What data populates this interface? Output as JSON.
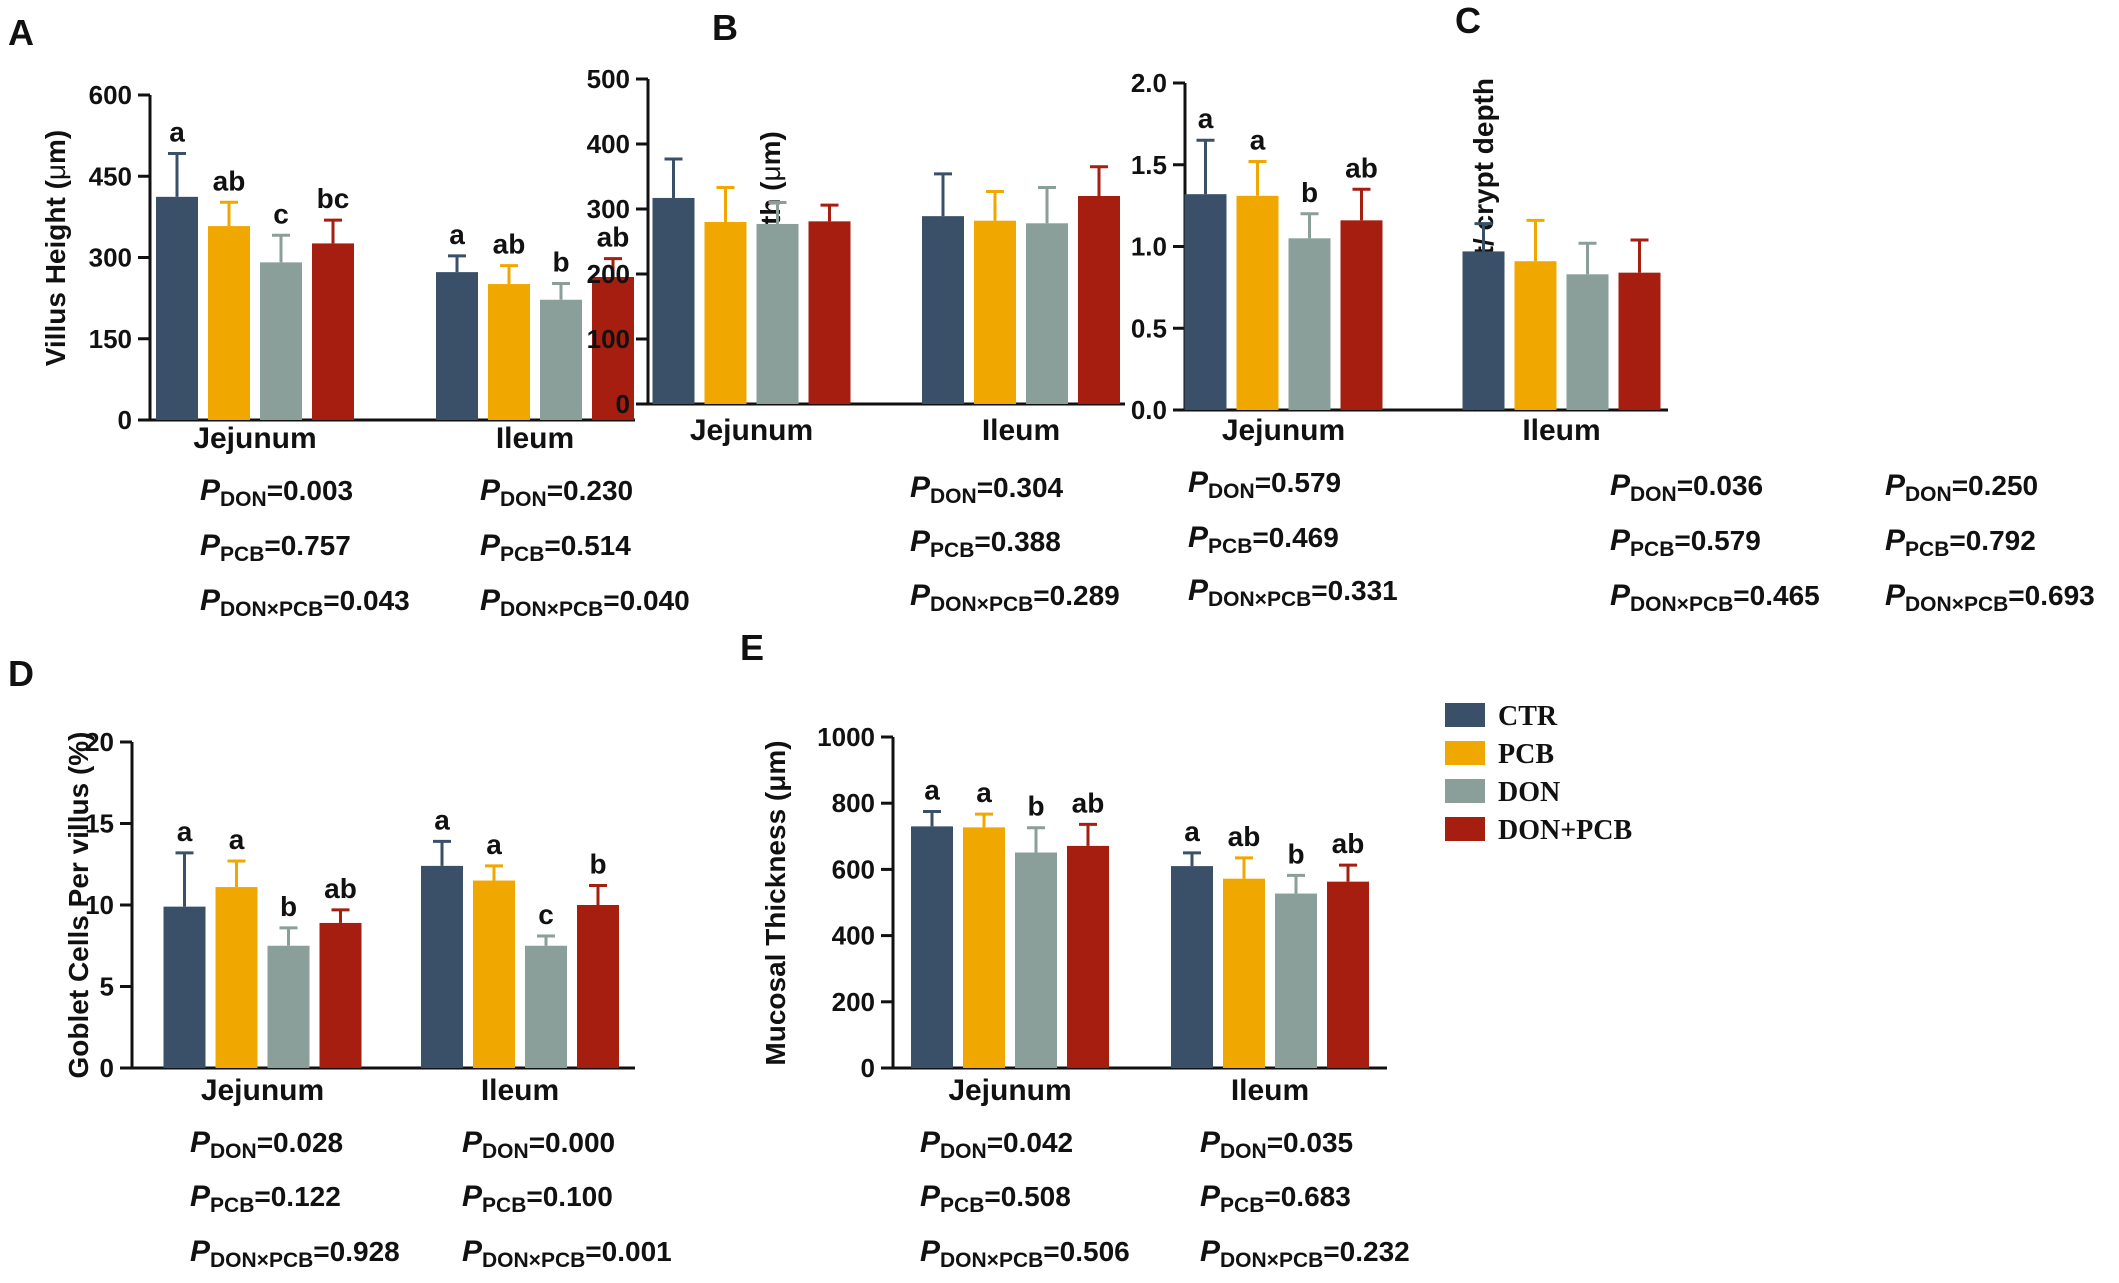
{
  "colors": {
    "CTR": "#3a5068",
    "PCB": "#f0a800",
    "DON": "#8a9e9a",
    "DON+PCB": "#a51e10",
    "axis": "#111111"
  },
  "legend": {
    "items": [
      {
        "label": "CTR",
        "color": "#3a5068"
      },
      {
        "label": "PCB",
        "color": "#f0a800"
      },
      {
        "label": "DON",
        "color": "#8a9e9a"
      },
      {
        "label": "DON+PCB",
        "color": "#a51e10"
      }
    ]
  },
  "chart_data": [
    {
      "id": "A",
      "type": "bar",
      "panel_label": "A",
      "ylabel_parts": [
        "Villus Height (",
        "μ",
        "m)"
      ],
      "ylim": [
        0,
        600
      ],
      "yticks": [
        "0",
        "150",
        "300",
        "450",
        "600"
      ],
      "ytick_values": [
        0,
        150,
        300,
        450,
        600
      ],
      "categories": [
        "Jejunum",
        "Ileum"
      ],
      "series": [
        {
          "name": "CTR",
          "values": [
            412,
            273
          ],
          "errors": [
            80,
            30
          ],
          "letters": [
            "a",
            "a"
          ]
        },
        {
          "name": "PCB",
          "values": [
            358,
            251
          ],
          "errors": [
            44,
            34
          ],
          "letters": [
            "ab",
            "ab"
          ]
        },
        {
          "name": "DON",
          "values": [
            291,
            222
          ],
          "errors": [
            50,
            30
          ],
          "letters": [
            "c",
            "b"
          ]
        },
        {
          "name": "DON+PCB",
          "values": [
            326,
            264
          ],
          "errors": [
            43,
            34
          ],
          "letters": [
            "bc",
            "ab"
          ]
        }
      ],
      "pvalues": [
        [
          {
            "label": "P",
            "sub": "DON",
            "value": "=0.003"
          },
          {
            "label": "P",
            "sub": "PCB",
            "value": "=0.757"
          },
          {
            "label": "P",
            "sub": "DON×PCB",
            "value": "=0.043"
          }
        ],
        [
          {
            "label": "P",
            "sub": "DON",
            "value": "=0.230"
          },
          {
            "label": "P",
            "sub": "PCB",
            "value": "=0.514"
          },
          {
            "label": "P",
            "sub": "DON×PCB",
            "value": "=0.040"
          }
        ]
      ]
    },
    {
      "id": "B",
      "type": "bar",
      "panel_label": "B",
      "ylabel_parts": [
        "Crypt Depth (",
        "μ",
        "m)"
      ],
      "ylim": [
        0,
        500
      ],
      "yticks": [
        "0",
        "100",
        "200",
        "300",
        "400",
        "500"
      ],
      "ytick_values": [
        0,
        100,
        200,
        300,
        400,
        500
      ],
      "categories": [
        "Jejunum",
        "Ileum"
      ],
      "series": [
        {
          "name": "CTR",
          "values": [
            317,
            289
          ],
          "errors": [
            60,
            65
          ],
          "letters": [
            "",
            ""
          ]
        },
        {
          "name": "PCB",
          "values": [
            280,
            282
          ],
          "errors": [
            53,
            45
          ],
          "letters": [
            "",
            ""
          ]
        },
        {
          "name": "DON",
          "values": [
            277,
            278
          ],
          "errors": [
            33,
            55
          ],
          "letters": [
            "",
            ""
          ]
        },
        {
          "name": "DON+PCB",
          "values": [
            281,
            320
          ],
          "errors": [
            25,
            45
          ],
          "letters": [
            "",
            ""
          ]
        }
      ],
      "pvalues": [
        [
          {
            "label": "P",
            "sub": "DON",
            "value": "=0.304"
          },
          {
            "label": "P",
            "sub": "PCB",
            "value": "=0.388"
          },
          {
            "label": "P",
            "sub": "DON×PCB",
            "value": "=0.289"
          }
        ],
        [
          {
            "label": "P",
            "sub": "DON",
            "value": "=0.579"
          },
          {
            "label": "P",
            "sub": "PCB",
            "value": "=0.469"
          },
          {
            "label": "P",
            "sub": "DON×PCB",
            "value": "=0.331"
          }
        ]
      ]
    },
    {
      "id": "C",
      "type": "bar",
      "panel_label": "C",
      "ylabel_parts": [
        "Villus height/ crypt depth",
        "",
        ""
      ],
      "ylim": [
        0,
        2
      ],
      "yticks": [
        "0.0",
        "0.5",
        "1.0",
        "1.5",
        "2.0"
      ],
      "ytick_values": [
        0,
        0.5,
        1,
        1.5,
        2
      ],
      "categories": [
        "Jejunum",
        "Ileum"
      ],
      "series": [
        {
          "name": "CTR",
          "values": [
            1.32,
            0.97
          ],
          "errors": [
            0.33,
            0.17
          ],
          "letters": [
            "a",
            ""
          ]
        },
        {
          "name": "PCB",
          "values": [
            1.31,
            0.91
          ],
          "errors": [
            0.21,
            0.25
          ],
          "letters": [
            "a",
            ""
          ]
        },
        {
          "name": "DON",
          "values": [
            1.05,
            0.83
          ],
          "errors": [
            0.15,
            0.19
          ],
          "letters": [
            "b",
            ""
          ]
        },
        {
          "name": "DON+PCB",
          "values": [
            1.16,
            0.84
          ],
          "errors": [
            0.19,
            0.2
          ],
          "letters": [
            "ab",
            ""
          ]
        }
      ],
      "pvalues": [
        [
          {
            "label": "P",
            "sub": "DON",
            "value": "=0.036"
          },
          {
            "label": "P",
            "sub": "PCB",
            "value": "=0.579"
          },
          {
            "label": "P",
            "sub": "DON×PCB",
            "value": "=0.465"
          }
        ],
        [
          {
            "label": "P",
            "sub": "DON",
            "value": "=0.250"
          },
          {
            "label": "P",
            "sub": "PCB",
            "value": "=0.792"
          },
          {
            "label": "P",
            "sub": "DON×PCB",
            "value": "=0.693"
          }
        ]
      ]
    },
    {
      "id": "D",
      "type": "bar",
      "panel_label": "D",
      "ylabel_parts": [
        "Goblet Cells Per villus (%)",
        "",
        ""
      ],
      "ylim": [
        0,
        20
      ],
      "yticks": [
        "0",
        "5",
        "10",
        "15",
        "20"
      ],
      "ytick_values": [
        0,
        5,
        10,
        15,
        20
      ],
      "categories": [
        "Jejunum",
        "Ileum"
      ],
      "series": [
        {
          "name": "CTR",
          "values": [
            9.9,
            12.4
          ],
          "errors": [
            3.3,
            1.5
          ],
          "letters": [
            "a",
            "a"
          ]
        },
        {
          "name": "PCB",
          "values": [
            11.1,
            11.5
          ],
          "errors": [
            1.6,
            0.9
          ],
          "letters": [
            "a",
            "a"
          ]
        },
        {
          "name": "DON",
          "values": [
            7.5,
            7.5
          ],
          "errors": [
            1.1,
            0.6
          ],
          "letters": [
            "b",
            "c"
          ]
        },
        {
          "name": "DON+PCB",
          "values": [
            8.9,
            10.0
          ],
          "errors": [
            0.8,
            1.2
          ],
          "letters": [
            "ab",
            "b"
          ]
        }
      ],
      "pvalues": [
        [
          {
            "label": "P",
            "sub": "DON",
            "value": "=0.028"
          },
          {
            "label": "P",
            "sub": "PCB",
            "value": "=0.122"
          },
          {
            "label": "P",
            "sub": "DON×PCB",
            "value": "=0.928"
          }
        ],
        [
          {
            "label": "P",
            "sub": "DON",
            "value": "=0.000"
          },
          {
            "label": "P",
            "sub": "PCB",
            "value": "=0.100"
          },
          {
            "label": "P",
            "sub": "DON×PCB",
            "value": "=0.001"
          }
        ]
      ]
    },
    {
      "id": "E",
      "type": "bar",
      "panel_label": "E",
      "ylabel_parts": [
        "Mucosal Thickness (μm)",
        "",
        ""
      ],
      "ylim": [
        0,
        1000
      ],
      "yticks": [
        "0",
        "200",
        "400",
        "600",
        "800",
        "1000"
      ],
      "ytick_values": [
        0,
        200,
        400,
        600,
        800,
        1000
      ],
      "categories": [
        "Jejunum",
        "Ileum"
      ],
      "series": [
        {
          "name": "CTR",
          "values": [
            730,
            610
          ],
          "errors": [
            45,
            40
          ],
          "letters": [
            "a",
            "a"
          ]
        },
        {
          "name": "PCB",
          "values": [
            727,
            572
          ],
          "errors": [
            40,
            63
          ],
          "letters": [
            "a",
            "ab"
          ]
        },
        {
          "name": "DON",
          "values": [
            651,
            527
          ],
          "errors": [
            75,
            55
          ],
          "letters": [
            "b",
            "b"
          ]
        },
        {
          "name": "DON+PCB",
          "values": [
            671,
            563
          ],
          "errors": [
            65,
            50
          ],
          "letters": [
            "ab",
            "ab"
          ]
        }
      ],
      "pvalues": [
        [
          {
            "label": "P",
            "sub": "DON",
            "value": "=0.042"
          },
          {
            "label": "P",
            "sub": "PCB",
            "value": "=0.508"
          },
          {
            "label": "P",
            "sub": "DON×PCB",
            "value": "=0.506"
          }
        ],
        [
          {
            "label": "P",
            "sub": "DON",
            "value": "=0.035"
          },
          {
            "label": "P",
            "sub": "PCB",
            "value": "=0.683"
          },
          {
            "label": "P",
            "sub": "DON×PCB",
            "value": "=0.232"
          }
        ]
      ]
    }
  ]
}
